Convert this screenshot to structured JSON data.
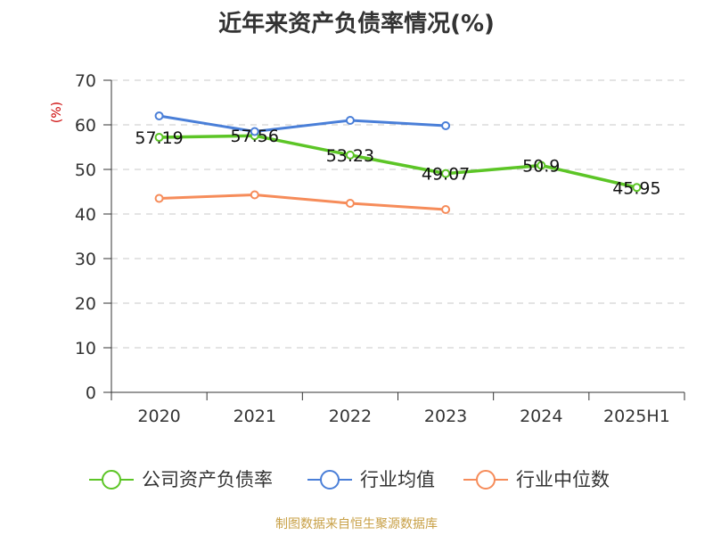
{
  "title": "近年来资产负债率情况(%)",
  "source": "制图数据来自恒生聚源数据库",
  "chart_data": {
    "type": "line",
    "title": "近年来资产负债率情况(%)",
    "unit": "(%)",
    "categories": [
      "2020",
      "2021",
      "2022",
      "2023",
      "2024",
      "2025H1"
    ],
    "ylim": [
      0,
      70
    ],
    "yticks": [
      0,
      10,
      20,
      30,
      40,
      50,
      60,
      70
    ],
    "grid": true,
    "legend_position": "bottom",
    "series": [
      {
        "name": "公司资产负债率",
        "color": "#5cc526",
        "width": 3.5,
        "values": [
          57.19,
          57.56,
          53.23,
          49.07,
          50.9,
          45.95
        ],
        "labels": [
          "57.19",
          "57.56",
          "53.23",
          "49.07",
          "50.9",
          "45.95"
        ]
      },
      {
        "name": "行业均值",
        "color": "#4a7fd8",
        "width": 3,
        "values": [
          62.0,
          58.5,
          61.0,
          59.8,
          null,
          null
        ]
      },
      {
        "name": "行业中位数",
        "color": "#f68c5a",
        "width": 3,
        "values": [
          43.5,
          44.3,
          42.4,
          41.0,
          null,
          null
        ]
      }
    ]
  }
}
